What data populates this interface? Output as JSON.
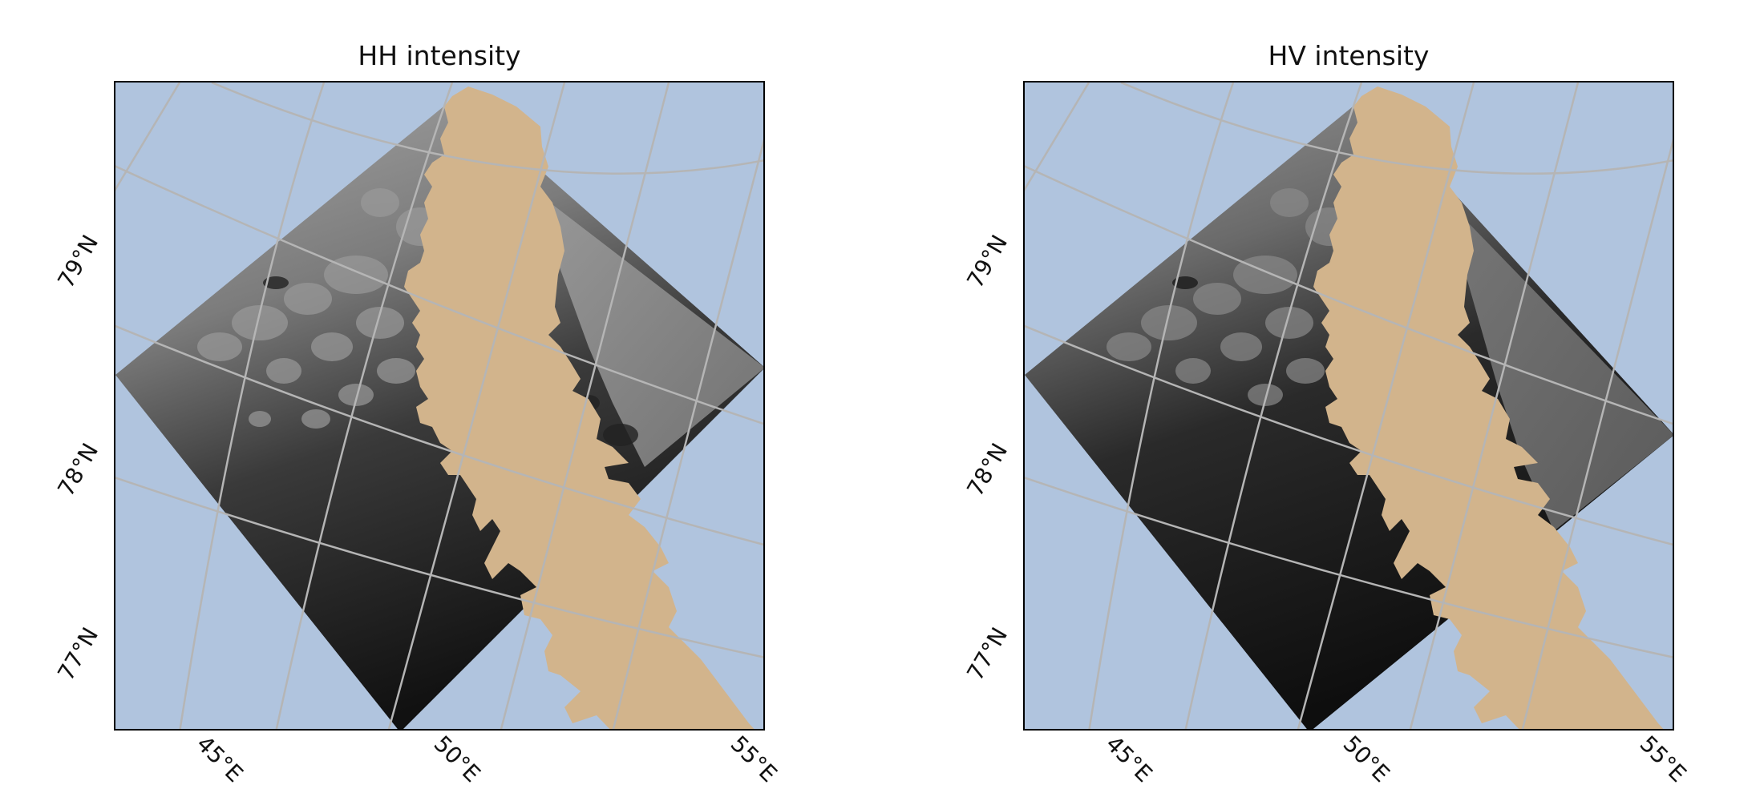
{
  "panels": [
    {
      "title": "HH intensity",
      "lat_ticks": [
        "79°N",
        "78°N",
        "77°N"
      ],
      "lon_ticks": [
        "45°E",
        "50°E",
        "55°E"
      ]
    },
    {
      "title": "HV intensity",
      "lat_ticks": [
        "79°N",
        "78°N",
        "77°N"
      ],
      "lon_ticks": [
        "45°E",
        "50°E",
        "55°E"
      ]
    }
  ],
  "colors": {
    "ocean": "#b0c4de",
    "land": "#d2b48c",
    "graticule": "#b5b5b5",
    "frame": "#000000"
  }
}
